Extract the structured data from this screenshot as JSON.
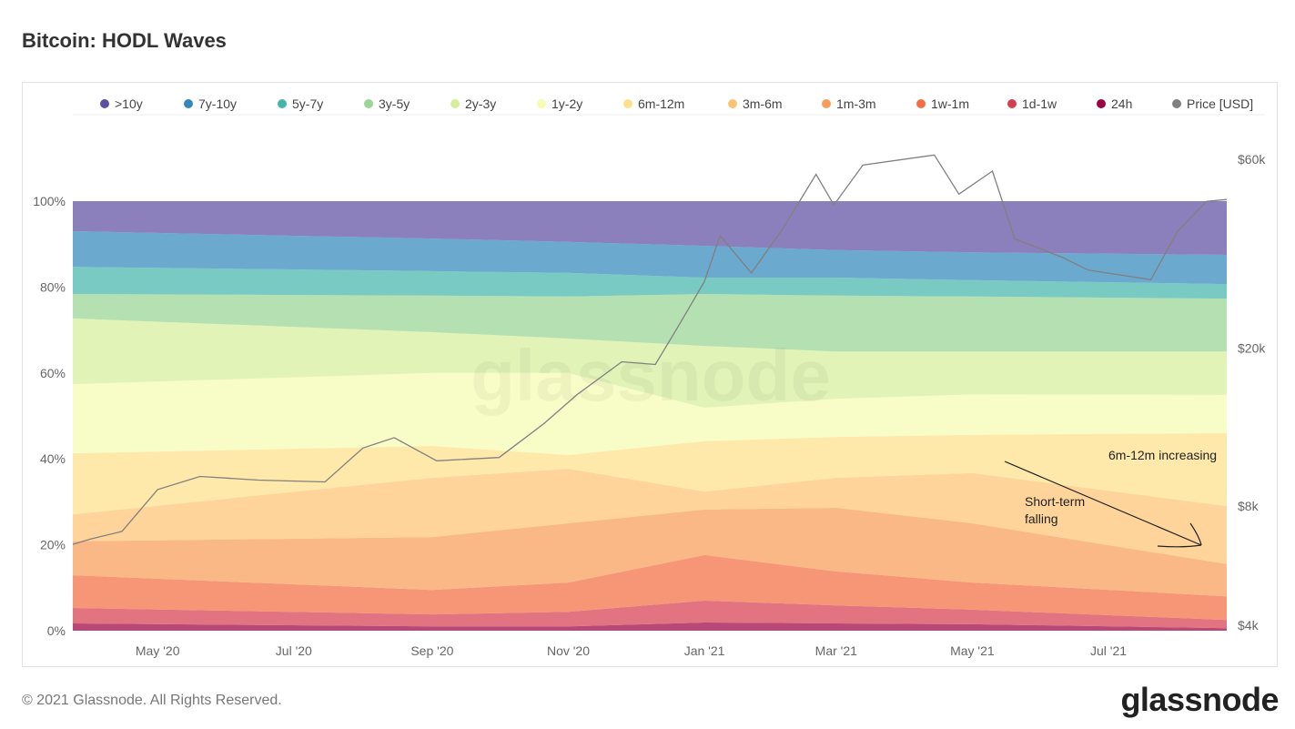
{
  "page": {
    "title": "Bitcoin: HODL Waves",
    "footer": "© 2021 Glassnode. All Rights Reserved.",
    "logo": "glassnode",
    "watermark": "glassnode"
  },
  "chart_data": {
    "type": "area",
    "stacked": true,
    "normalized": true,
    "title": "Bitcoin: HODL Waves",
    "x_axis": {
      "type": "date",
      "range": [
        "2020-03-24",
        "2021-08-23"
      ],
      "ticks": [
        {
          "date": "2020-05-01",
          "label": "May '20"
        },
        {
          "date": "2020-07-01",
          "label": "Jul '20"
        },
        {
          "date": "2020-09-01",
          "label": "Sep '20"
        },
        {
          "date": "2020-11-01",
          "label": "Nov '20"
        },
        {
          "date": "2021-01-01",
          "label": "Jan '21"
        },
        {
          "date": "2021-03-01",
          "label": "Mar '21"
        },
        {
          "date": "2021-05-01",
          "label": "May '21"
        },
        {
          "date": "2021-07-01",
          "label": "Jul '21"
        }
      ]
    },
    "y_axis_left": {
      "range": [
        0,
        100
      ],
      "unit": "%",
      "ticks": [
        {
          "value": 0,
          "label": "0%"
        },
        {
          "value": 20,
          "label": "20%"
        },
        {
          "value": 40,
          "label": "40%"
        },
        {
          "value": 60,
          "label": "60%"
        },
        {
          "value": 80,
          "label": "80%"
        },
        {
          "value": 100,
          "label": "100%"
        }
      ]
    },
    "y_axis_right": {
      "scale": "log",
      "range": [
        4000,
        60000
      ],
      "ticks": [
        {
          "value": 4000,
          "label": "$4k"
        },
        {
          "value": 8000,
          "label": "$8k"
        },
        {
          "value": 20000,
          "label": "$20k"
        },
        {
          "value": 60000,
          "label": "$60k"
        }
      ]
    },
    "grid": false,
    "legend_position": "top",
    "dates": [
      "2020-03-24",
      "2020-09-01",
      "2020-11-01",
      "2021-01-01",
      "2021-03-01",
      "2021-05-01",
      "2021-08-23"
    ],
    "series": [
      {
        "name": "24h",
        "color": "#9e0142",
        "values": [
          1.7,
          1.0,
          1.0,
          1.9,
          1.7,
          1.5,
          0.6
        ]
      },
      {
        "name": "1d-1w",
        "color": "#d53e4f",
        "values": [
          3.6,
          2.8,
          3.4,
          5.1,
          4.2,
          3.4,
          1.9
        ]
      },
      {
        "name": "1w-1m",
        "color": "#f46d43",
        "values": [
          7.6,
          5.7,
          6.8,
          10.6,
          7.9,
          6.3,
          5.5
        ]
      },
      {
        "name": "1m-3m",
        "color": "#f99d59",
        "values": [
          7.9,
          12.3,
          13.8,
          10.6,
          14.8,
          13.8,
          7.5
        ]
      },
      {
        "name": "3m-6m",
        "color": "#fdc374",
        "values": [
          6.3,
          13.8,
          12.7,
          4.2,
          7.0,
          11.7,
          13.5
        ]
      },
      {
        "name": "6m-12m",
        "color": "#fee08b",
        "values": [
          14.2,
          7.4,
          3.2,
          11.7,
          9.5,
          8.9,
          17.0
        ]
      },
      {
        "name": "1y-2y",
        "color": "#f5fbb0",
        "values": [
          16.1,
          17.0,
          19.1,
          7.8,
          8.9,
          9.4,
          8.9
        ]
      },
      {
        "name": "2y-3y",
        "color": "#d5ee9b",
        "values": [
          15.3,
          9.5,
          8.0,
          14.4,
          11.0,
          10.0,
          10.1
        ]
      },
      {
        "name": "3y-5y",
        "color": "#99d594",
        "values": [
          5.7,
          8.5,
          9.8,
          12.1,
          13.0,
          12.8,
          12.3
        ]
      },
      {
        "name": "5y-7y",
        "color": "#45b5aa",
        "values": [
          6.3,
          5.7,
          5.5,
          3.8,
          4.2,
          3.8,
          3.4
        ]
      },
      {
        "name": "7y-10y",
        "color": "#3288bd",
        "values": [
          8.3,
          7.6,
          7.2,
          7.4,
          6.4,
          6.5,
          6.8
        ]
      },
      {
        "name": ">10y",
        "color": "#5e4fa2",
        "values": [
          7.0,
          8.7,
          9.5,
          10.4,
          11.4,
          11.9,
          12.5
        ]
      }
    ],
    "price": {
      "name": "Price [USD]",
      "color": "#808080",
      "points": [
        [
          "2020-03-24",
          6400
        ],
        [
          "2020-04-01",
          6600
        ],
        [
          "2020-04-15",
          6900
        ],
        [
          "2020-05-01",
          8800
        ],
        [
          "2020-05-20",
          9500
        ],
        [
          "2020-06-15",
          9300
        ],
        [
          "2020-07-15",
          9200
        ],
        [
          "2020-08-01",
          11200
        ],
        [
          "2020-08-15",
          11900
        ],
        [
          "2020-09-03",
          10400
        ],
        [
          "2020-10-01",
          10600
        ],
        [
          "2020-10-21",
          12900
        ],
        [
          "2020-11-05",
          15300
        ],
        [
          "2020-11-25",
          18500
        ],
        [
          "2020-12-10",
          18200
        ],
        [
          "2020-12-20",
          22600
        ],
        [
          "2021-01-01",
          29500
        ],
        [
          "2021-01-08",
          38500
        ],
        [
          "2021-01-22",
          31000
        ],
        [
          "2021-02-05",
          40000
        ],
        [
          "2021-02-20",
          55000
        ],
        [
          "2021-02-28",
          46000
        ],
        [
          "2021-03-13",
          58000
        ],
        [
          "2021-04-14",
          61500
        ],
        [
          "2021-04-25",
          49000
        ],
        [
          "2021-05-10",
          56000
        ],
        [
          "2021-05-20",
          37800
        ],
        [
          "2021-06-10",
          34000
        ],
        [
          "2021-06-22",
          31500
        ],
        [
          "2021-07-20",
          29800
        ],
        [
          "2021-08-01",
          39500
        ],
        [
          "2021-08-14",
          47000
        ],
        [
          "2021-08-23",
          47500
        ]
      ]
    },
    "annotations": [
      {
        "text": "6m-12m increasing"
      },
      {
        "text_lines": [
          "Short-term",
          "falling"
        ]
      }
    ]
  }
}
